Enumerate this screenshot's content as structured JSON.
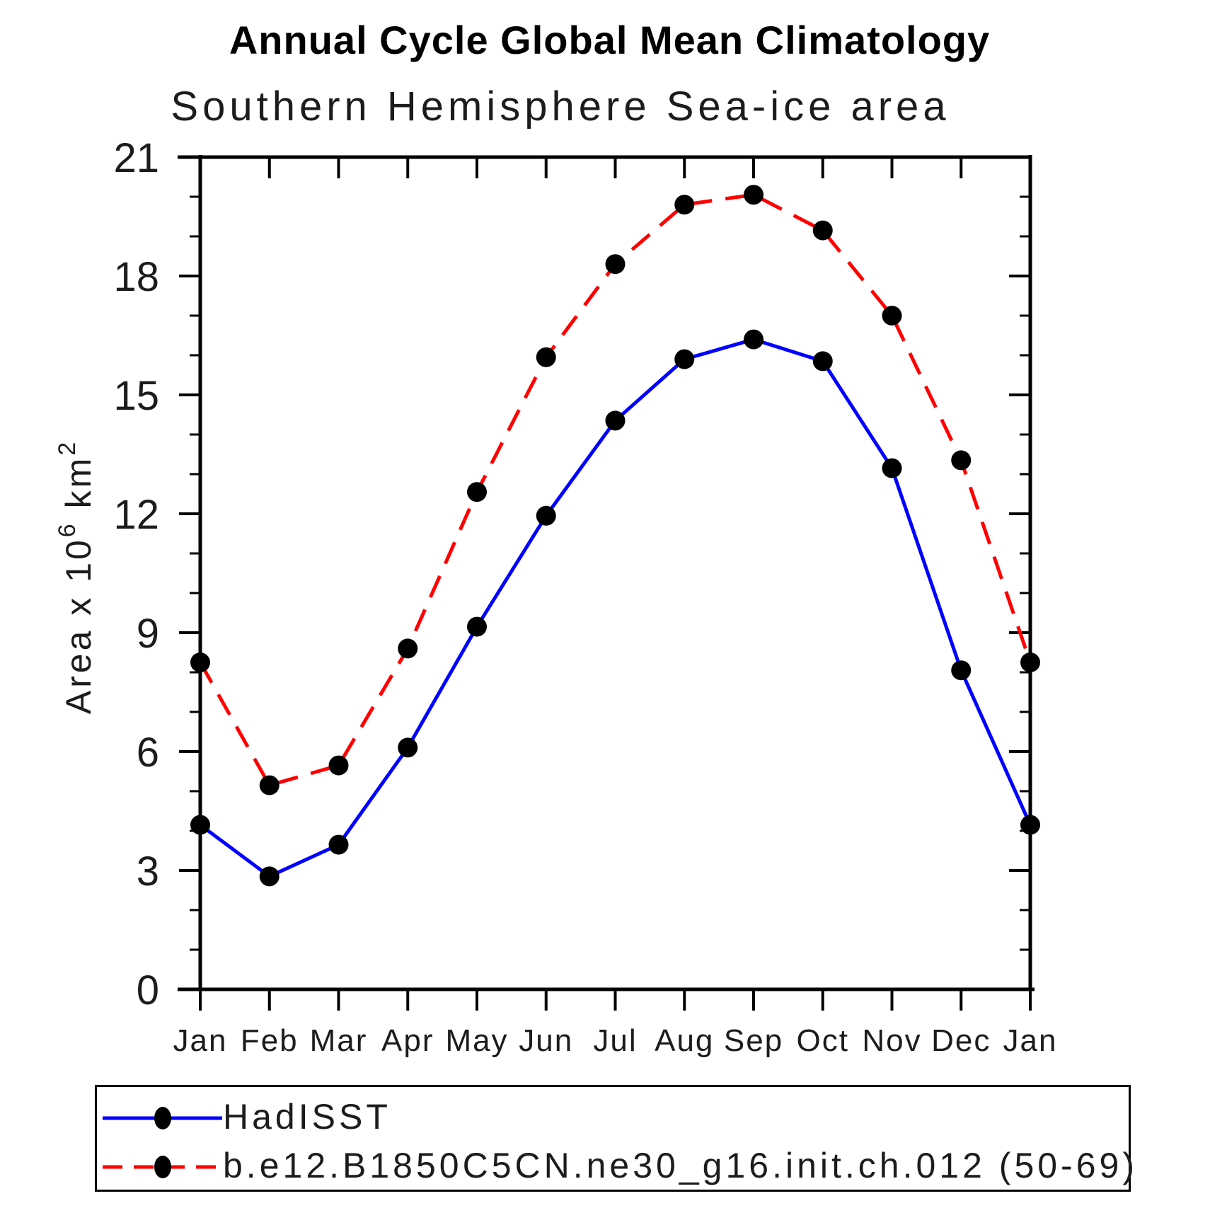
{
  "title": "Annual Cycle Global Mean Climatology",
  "subtitle": "Southern Hemisphere Sea-ice area",
  "chart_data": {
    "type": "line",
    "x_categories": [
      "Jan",
      "Feb",
      "Mar",
      "Apr",
      "May",
      "Jun",
      "Jul",
      "Aug",
      "Sep",
      "Oct",
      "Nov",
      "Dec",
      "Jan"
    ],
    "xlabel": "",
    "ylabel": "Area x 10⁶ km²",
    "ylabel_parts": [
      {
        "text": "Area x 10",
        "superscript": false
      },
      {
        "text": "6",
        "superscript": true
      },
      {
        "text": " km",
        "superscript": false
      },
      {
        "text": "2",
        "superscript": true
      }
    ],
    "ylim": [
      0,
      21
    ],
    "y_major_ticks": [
      0,
      3,
      6,
      9,
      12,
      15,
      18,
      21
    ],
    "y_minor_tick_step": 1,
    "grid": false,
    "legend_position": "bottom-left-box",
    "series": [
      {
        "name": "HadISST",
        "color": "#0000ff",
        "line_style": "solid",
        "marker": "filled-circle",
        "marker_color": "#000000",
        "values": [
          4.15,
          2.85,
          3.65,
          6.1,
          9.15,
          11.95,
          14.35,
          15.9,
          16.4,
          15.85,
          13.15,
          8.05,
          4.15
        ]
      },
      {
        "name": "b.e12.B1850C5CN.ne30_g16.init.ch.012 (50-69)",
        "color": "#ff0000",
        "line_style": "dashed",
        "marker": "filled-circle",
        "marker_color": "#000000",
        "values": [
          8.25,
          5.15,
          5.65,
          8.6,
          12.55,
          15.95,
          18.3,
          19.8,
          20.05,
          19.15,
          17.0,
          13.35,
          8.25
        ]
      }
    ]
  }
}
